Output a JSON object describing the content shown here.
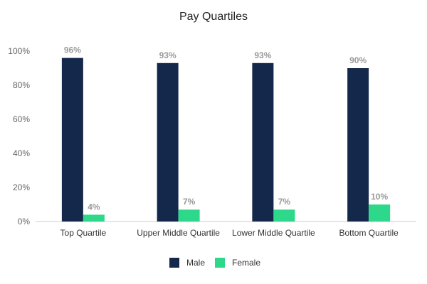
{
  "chart_data": {
    "type": "bar",
    "title": "Pay Quartiles",
    "xlabel": "",
    "ylabel": "",
    "categories": [
      "Top Quartile",
      "Upper Middle Quartile",
      "Lower Middle Quartile",
      "Bottom Quartile"
    ],
    "series": [
      {
        "name": "Male",
        "values": [
          96,
          93,
          93,
          90
        ],
        "labels": [
          "96%",
          "93%",
          "93%",
          "90%"
        ],
        "color": "#14284b"
      },
      {
        "name": "Female",
        "values": [
          4,
          7,
          7,
          10
        ],
        "labels": [
          "4%",
          "7%",
          "7%",
          "10%"
        ],
        "color": "#2ed88a"
      }
    ],
    "ylim": [
      0,
      100
    ],
    "yticks": [
      0,
      20,
      40,
      60,
      80,
      100
    ],
    "ytick_labels": [
      "0%",
      "20%",
      "40%",
      "60%",
      "80%",
      "100%"
    ],
    "grid": false,
    "legend_position": "bottom",
    "axis_color": "#cccccc"
  }
}
